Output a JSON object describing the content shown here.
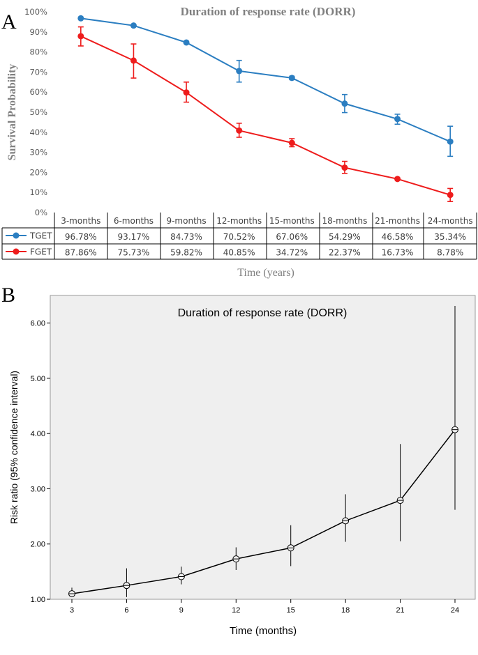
{
  "panels": {
    "a": {
      "letter": "A"
    },
    "b": {
      "letter": "B"
    }
  },
  "colors": {
    "tget": "#2b7ec1",
    "fget": "#ee1c1c",
    "panel_b_bg": "#efefef",
    "panel_b_line": "#000000"
  },
  "chart_data": [
    {
      "type": "line",
      "title": "Duration of response rate (DORR)",
      "xlabel": "Time (years)",
      "ylabel": "Survival Probability",
      "ylim": [
        0,
        100
      ],
      "yticks": [
        "0%",
        "10%",
        "20%",
        "30%",
        "40%",
        "50%",
        "60%",
        "70%",
        "80%",
        "90%",
        "100%"
      ],
      "categories": [
        "3-months",
        "6-months",
        "9-months",
        "12-months",
        "15-months",
        "18-months",
        "21-months",
        "24-months"
      ],
      "series": [
        {
          "name": "TGET",
          "color": "#2b7ec1",
          "values": [
            96.78,
            93.17,
            84.73,
            70.52,
            67.06,
            54.29,
            46.58,
            35.34
          ],
          "labels": [
            "96.78%",
            "93.17%",
            "84.73%",
            "70.52%",
            "67.06%",
            "54.29%",
            "46.58%",
            "35.34%"
          ],
          "error_low": [
            96.78,
            93.17,
            84.73,
            65.0,
            66.2,
            49.8,
            44.0,
            28.0
          ],
          "error_high": [
            96.78,
            93.17,
            84.73,
            75.8,
            67.9,
            58.8,
            49.0,
            43.0
          ]
        },
        {
          "name": "FGET",
          "color": "#ee1c1c",
          "values": [
            87.86,
            75.73,
            59.82,
            40.85,
            34.72,
            22.37,
            16.73,
            8.78
          ],
          "labels": [
            "87.86%",
            "75.73%",
            "59.82%",
            "40.85%",
            "34.72%",
            "22.37%",
            "16.73%",
            "8.78%"
          ],
          "error_low": [
            83.0,
            67.0,
            55.0,
            37.5,
            32.8,
            19.5,
            16.73,
            5.5
          ],
          "error_high": [
            92.5,
            84.0,
            65.0,
            44.5,
            36.8,
            25.5,
            16.73,
            12.0
          ]
        }
      ]
    },
    {
      "type": "line",
      "title": "Duration of response rate (DORR)",
      "xlabel": "Time (months)",
      "ylabel": "Risk ratio (95% confidence interval)",
      "ylim": [
        1.0,
        6.5
      ],
      "yticks": [
        "1.00",
        "2.00",
        "3.00",
        "4.00",
        "5.00",
        "6.00"
      ],
      "x": [
        3,
        6,
        9,
        12,
        15,
        18,
        21,
        24
      ],
      "xticks": [
        "3",
        "6",
        "9",
        "12",
        "15",
        "18",
        "21",
        "24"
      ],
      "values": [
        1.1,
        1.25,
        1.41,
        1.73,
        1.93,
        2.42,
        2.79,
        4.07
      ],
      "ci_low": [
        1.04,
        1.04,
        1.27,
        1.53,
        1.6,
        2.04,
        2.05,
        2.62
      ],
      "ci_high": [
        1.21,
        1.56,
        1.59,
        1.94,
        2.34,
        2.9,
        3.81,
        6.31
      ]
    }
  ]
}
